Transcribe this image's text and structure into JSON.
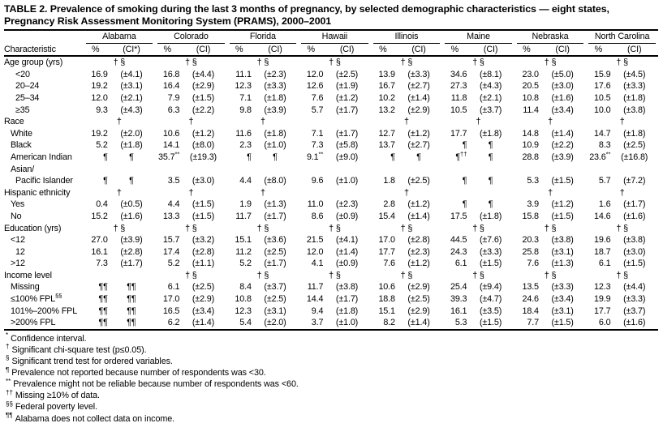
{
  "colors": {
    "background": "#ffffff",
    "text": "#000000",
    "rule": "#000000"
  },
  "title": {
    "line1": "TABLE 2. Prevalence of smoking during the last 3 months of pregnancy, by selected demographic characteristics — eight states,",
    "line2": "Pregnancy Risk Assessment Monitoring System (PRAMS), 2000–2001"
  },
  "table": {
    "states": [
      "Alabama",
      "Colorado",
      "Florida",
      "Hawaii",
      "Illinois",
      "Maine",
      "Nebraska",
      "North Carolina"
    ],
    "characteristic_header": "Characteristic",
    "pct_header": "%",
    "ci_header_first": "(CI*)",
    "ci_header": "(CI)",
    "rows": [
      {
        "label": "Age group (yrs)",
        "indent": 0,
        "type": "section",
        "symbols": [
          "† §",
          "† §",
          "† §",
          "† §",
          "† §",
          "† §",
          "† §",
          "† §"
        ]
      },
      {
        "label": "<20",
        "indent": 2,
        "type": "data",
        "cells": [
          "16.9",
          "(±4.1)",
          "16.8",
          "(±4.4)",
          "11.1",
          "(±2.3)",
          "12.0",
          "(±2.5)",
          "13.9",
          "(±3.3)",
          "34.6",
          "(±8.1)",
          "23.0",
          "(±5.0)",
          "15.9",
          "(±4.5)"
        ]
      },
      {
        "label": "20–24",
        "indent": 2,
        "type": "data",
        "cells": [
          "19.2",
          "(±3.1)",
          "16.4",
          "(±2.9)",
          "12.3",
          "(±3.3)",
          "12.6",
          "(±1.9)",
          "16.7",
          "(±2.7)",
          "27.3",
          "(±4.3)",
          "20.5",
          "(±3.0)",
          "17.6",
          "(±3.3)"
        ]
      },
      {
        "label": "25–34",
        "indent": 2,
        "type": "data",
        "cells": [
          "12.0",
          "(±2.1)",
          "7.9",
          "(±1.5)",
          "7.1",
          "(±1.8)",
          "7.6",
          "(±1.2)",
          "10.2",
          "(±1.4)",
          "11.8",
          "(±2.1)",
          "10.8",
          "(±1.6)",
          "10.5",
          "(±1.8)"
        ]
      },
      {
        "label": "≥35",
        "indent": 2,
        "type": "data",
        "cells": [
          "9.3",
          "(±4.3)",
          "6.3",
          "(±2.2)",
          "9.8",
          "(±3.9)",
          "5.7",
          "(±1.7)",
          "13.2",
          "(±2.9)",
          "10.5",
          "(±3.7)",
          "11.4",
          "(±3.4)",
          "10.0",
          "(±3.8)"
        ]
      },
      {
        "label": "Race",
        "indent": 0,
        "type": "section",
        "symbols": [
          "†",
          "†",
          "†",
          "",
          "†",
          "†",
          "†",
          "†"
        ]
      },
      {
        "label": "White",
        "indent": 1,
        "type": "data",
        "cells": [
          "19.2",
          "(±2.0)",
          "10.6",
          "(±1.2)",
          "11.6",
          "(±1.8)",
          "7.1",
          "(±1.7)",
          "12.7",
          "(±1.2)",
          "17.7",
          "(±1.8)",
          "14.8",
          "(±1.4)",
          "14.7",
          "(±1.8)"
        ]
      },
      {
        "label": "Black",
        "indent": 1,
        "type": "data",
        "cells": [
          "5.2",
          "(±1.8)",
          "14.1",
          "(±8.0)",
          "2.3",
          "(±1.0)",
          "7.3",
          "(±5.8)",
          "13.7",
          "(±2.7)",
          "¶",
          "¶",
          "10.9",
          "(±2.2)",
          "8.3",
          "(±2.5)"
        ]
      },
      {
        "label": "American Indian",
        "indent": 1,
        "type": "data",
        "cells": [
          "¶",
          "¶",
          "35.7^**",
          "(±19.3)",
          "¶",
          "¶",
          "9.1^**",
          "(±9.0)",
          "¶",
          "¶",
          "¶^††",
          "¶",
          "28.8",
          "(±3.9)",
          "23.6^**",
          "(±16.8)"
        ]
      },
      {
        "label": "Asian/",
        "indent": 1,
        "type": "label-only"
      },
      {
        "label": "Pacific Islander",
        "indent": 2,
        "type": "data",
        "cells": [
          "¶",
          "¶",
          "3.5",
          "(±3.0)",
          "4.4",
          "(±8.0)",
          "9.6",
          "(±1.0)",
          "1.8",
          "(±2.5)",
          "¶",
          "¶",
          "5.3",
          "(±1.5)",
          "5.7",
          "(±7.2)"
        ]
      },
      {
        "label": "Hispanic ethnicity",
        "indent": 0,
        "type": "section",
        "symbols": [
          "†",
          "†",
          "†",
          "",
          "†",
          "",
          "†",
          "†"
        ]
      },
      {
        "label": "Yes",
        "indent": 1,
        "type": "data",
        "cells": [
          "0.4",
          "(±0.5)",
          "4.4",
          "(±1.5)",
          "1.9",
          "(±1.3)",
          "11.0",
          "(±2.3)",
          "2.8",
          "(±1.2)",
          "¶",
          "¶",
          "3.9",
          "(±1.2)",
          "1.6",
          "(±1.7)"
        ]
      },
      {
        "label": "No",
        "indent": 1,
        "type": "data",
        "cells": [
          "15.2",
          "(±1.6)",
          "13.3",
          "(±1.5)",
          "11.7",
          "(±1.7)",
          "8.6",
          "(±0.9)",
          "15.4",
          "(±1.4)",
          "17.5",
          "(±1.8)",
          "15.8",
          "(±1.5)",
          "14.6",
          "(±1.6)"
        ]
      },
      {
        "label": "Education (yrs)",
        "indent": 0,
        "type": "section",
        "symbols": [
          "† §",
          "† §",
          "† §",
          "† §",
          "† §",
          "† §",
          "† §",
          "† §"
        ]
      },
      {
        "label": "<12",
        "indent": 1,
        "type": "data",
        "cells": [
          "27.0",
          "(±3.9)",
          "15.7",
          "(±3.2)",
          "15.1",
          "(±3.6)",
          "21.5",
          "(±4.1)",
          "17.0",
          "(±2.8)",
          "44.5",
          "(±7.6)",
          "20.3",
          "(±3.8)",
          "19.6",
          "(±3.8)"
        ]
      },
      {
        "label": "12",
        "indent": 2,
        "type": "data",
        "cells": [
          "16.1",
          "(±2.8)",
          "17.4",
          "(±2.8)",
          "11.2",
          "(±2.5)",
          "12.0",
          "(±1.4)",
          "17.7",
          "(±2.3)",
          "24.3",
          "(±3.3)",
          "25.8",
          "(±3.1)",
          "18.7",
          "(±3.0)"
        ]
      },
      {
        "label": ">12",
        "indent": 1,
        "type": "data",
        "cells": [
          "7.3",
          "(±1.7)",
          "5.2",
          "(±1.1)",
          "5.2",
          "(±1.7)",
          "4.1",
          "(±0.9)",
          "7.6",
          "(±1.2)",
          "6.1",
          "(±1.5)",
          "7.6",
          "(±1.3)",
          "6.1",
          "(±1.5)"
        ]
      },
      {
        "label": "Income level",
        "indent": 0,
        "type": "section",
        "symbols": [
          "",
          "† §",
          "† §",
          "† §",
          "† §",
          "† §",
          "† §",
          "† §"
        ]
      },
      {
        "label": "Missing",
        "indent": 1,
        "type": "data",
        "cells": [
          "¶¶",
          "¶¶",
          "6.1",
          "(±2.5)",
          "8.4",
          "(±3.7)",
          "11.7",
          "(±3.8)",
          "10.6",
          "(±2.9)",
          "25.4",
          "(±9.4)",
          "13.5",
          "(±3.3)",
          "12.3",
          "(±4.4)"
        ]
      },
      {
        "label": "≤100% FPL",
        "label_sup": "§§",
        "indent": 1,
        "type": "data",
        "cells": [
          "¶¶",
          "¶¶",
          "17.0",
          "(±2.9)",
          "10.8",
          "(±2.5)",
          "14.4",
          "(±1.7)",
          "18.8",
          "(±2.5)",
          "39.3",
          "(±4.7)",
          "24.6",
          "(±3.4)",
          "19.9",
          "(±3.3)"
        ]
      },
      {
        "label": "101%–200% FPL",
        "indent": 1,
        "type": "data",
        "cells": [
          "¶¶",
          "¶¶",
          "16.5",
          "(±3.4)",
          "12.3",
          "(±3.1)",
          "9.4",
          "(±1.8)",
          "15.1",
          "(±2.9)",
          "16.1",
          "(±3.5)",
          "18.4",
          "(±3.1)",
          "17.7",
          "(±3.7)"
        ]
      },
      {
        "label": ">200% FPL",
        "indent": 1,
        "type": "data",
        "cells": [
          "¶¶",
          "¶¶",
          "6.2",
          "(±1.4)",
          "5.4",
          "(±2.0)",
          "3.7",
          "(±1.0)",
          "8.2",
          "(±1.4)",
          "5.3",
          "(±1.5)",
          "7.7",
          "(±1.5)",
          "6.0",
          "(±1.6)"
        ]
      }
    ]
  },
  "footnotes": [
    {
      "symbol": "*",
      "text": "Confidence interval."
    },
    {
      "symbol": "†",
      "text": "Significant chi-square test (p≤0.05)."
    },
    {
      "symbol": "§",
      "text": "Significant trend test for ordered variables."
    },
    {
      "symbol": "¶",
      "text": "Prevalence not reported because number of respondents was <30."
    },
    {
      "symbol": "**",
      "text": "Prevalence might not be reliable because number of respondents was <60."
    },
    {
      "symbol": "††",
      "text": "Missing ≥10% of data."
    },
    {
      "symbol": "§§",
      "text": "Federal poverty level."
    },
    {
      "symbol": "¶¶",
      "text": "Alabama does not collect data on income."
    }
  ]
}
